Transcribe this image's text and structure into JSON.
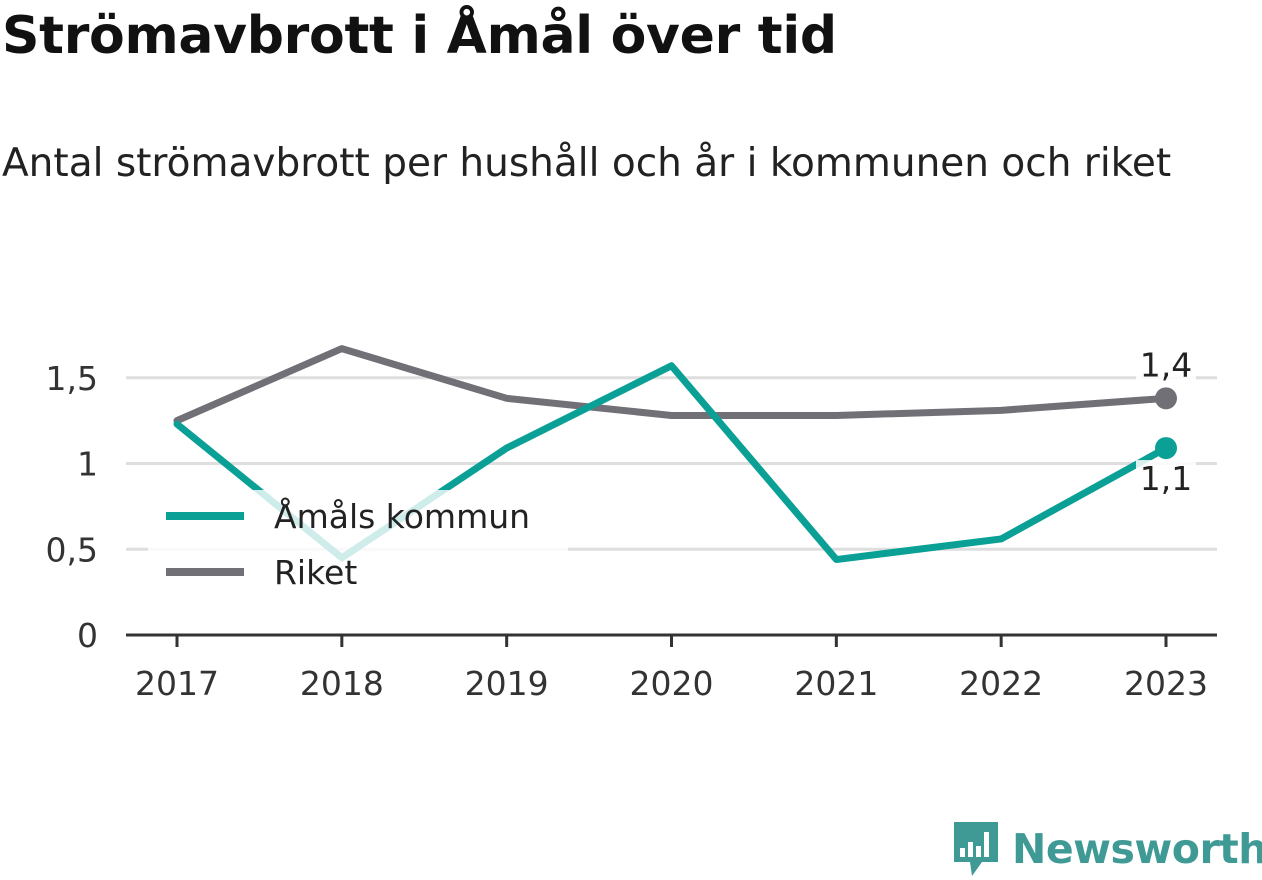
{
  "title": "Strömavbrott i Åmål över tid",
  "subtitle": "Antal strömavbrott per hushåll och år i kommunen och riket",
  "brand": {
    "name": "Newsworthy",
    "color": "#3f9a96",
    "icon": "bar-chart-badge-icon"
  },
  "chart_data": {
    "type": "line",
    "x": [
      "2017",
      "2018",
      "2019",
      "2020",
      "2021",
      "2022",
      "2023"
    ],
    "ylim": [
      0,
      1.75
    ],
    "yticks": [
      {
        "value": 0,
        "label": "0"
      },
      {
        "value": 0.5,
        "label": "0,5"
      },
      {
        "value": 1,
        "label": "1"
      },
      {
        "value": 1.5,
        "label": "1,5"
      }
    ],
    "grid": true,
    "legend": "bottom-left",
    "series": [
      {
        "name": "Åmåls kommun",
        "color": "#0aa096",
        "values": [
          1.23,
          0.45,
          1.09,
          1.57,
          0.44,
          0.56,
          1.09
        ],
        "end_label": "1,1",
        "end_label_position": "below"
      },
      {
        "name": "Riket",
        "color": "#717077",
        "values": [
          1.25,
          1.67,
          1.38,
          1.28,
          1.28,
          1.31,
          1.38
        ],
        "end_label": "1,4",
        "end_label_position": "above"
      }
    ]
  }
}
